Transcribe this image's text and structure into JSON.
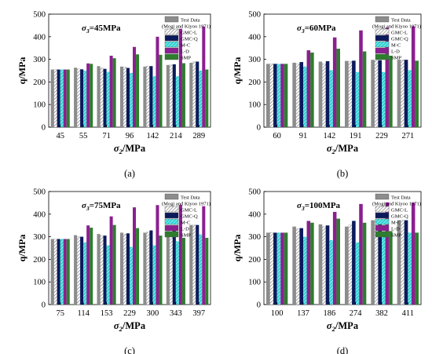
{
  "legend": {
    "items": [
      {
        "label": "Test Data",
        "sub": "(Mogi and Kiyoo 1971)",
        "fill": "#8c8c8c",
        "pattern": "none"
      },
      {
        "label": "GMC-L",
        "fill": "#ffffff",
        "pattern": "hatch-grey"
      },
      {
        "label": "GMC-Q",
        "fill": "#0b1a5c",
        "pattern": "none"
      },
      {
        "label": "M-C",
        "fill": "#2fd3d3",
        "pattern": "hatch-white"
      },
      {
        "label": "L-D",
        "fill": "#8b1f8f",
        "pattern": "none"
      },
      {
        "label": "SMP",
        "fill": "#2e7d2e",
        "pattern": "none"
      }
    ]
  },
  "chart_data": [
    {
      "type": "bar",
      "panel_label": "(a)",
      "subtitle": "σ3=45MPa",
      "xlabel": "σ2/MPa",
      "ylabel": "q/MPa",
      "ylim": [
        0,
        500
      ],
      "yticks": [
        0,
        100,
        200,
        300,
        400,
        500
      ],
      "categories": [
        "45",
        "55",
        "71",
        "96",
        "142",
        "214",
        "289"
      ],
      "series": [
        {
          "name": "Test Data",
          "values": [
            255,
            263,
            270,
            268,
            268,
            275,
            285
          ]
        },
        {
          "name": "GMC-L",
          "values": [
            255,
            258,
            262,
            266,
            270,
            275,
            289
          ]
        },
        {
          "name": "GMC-Q",
          "values": [
            255,
            256,
            258,
            262,
            270,
            278,
            290
          ]
        },
        {
          "name": "M-C",
          "values": [
            255,
            250,
            245,
            240,
            225,
            225,
            250
          ]
        },
        {
          "name": "L-D",
          "values": [
            255,
            282,
            316,
            355,
            400,
            435,
            445
          ]
        },
        {
          "name": "SMP",
          "values": [
            255,
            280,
            305,
            322,
            320,
            283,
            255
          ]
        }
      ]
    },
    {
      "type": "bar",
      "panel_label": "(b)",
      "subtitle": "σ3=60MPa",
      "xlabel": "σ2/MPa",
      "ylabel": "q/MPa",
      "ylim": [
        0,
        500
      ],
      "yticks": [
        0,
        100,
        200,
        300,
        400,
        500
      ],
      "categories": [
        "60",
        "91",
        "142",
        "191",
        "229",
        "271"
      ],
      "series": [
        {
          "name": "Test Data",
          "values": [
            280,
            285,
            290,
            293,
            298,
            298
          ]
        },
        {
          "name": "GMC-L",
          "values": [
            280,
            280,
            280,
            290,
            295,
            298
          ]
        },
        {
          "name": "GMC-Q",
          "values": [
            280,
            288,
            292,
            294,
            296,
            298
          ]
        },
        {
          "name": "M-C",
          "values": [
            280,
            268,
            252,
            244,
            244,
            252
          ]
        },
        {
          "name": "L-D",
          "values": [
            280,
            340,
            397,
            428,
            440,
            446
          ]
        },
        {
          "name": "SMP",
          "values": [
            280,
            330,
            347,
            335,
            316,
            294
          ]
        }
      ]
    },
    {
      "type": "bar",
      "panel_label": "(c)",
      "subtitle": "σ3=75MPa",
      "xlabel": "σ2/MPa",
      "ylabel": "q/MPa",
      "ylim": [
        0,
        500
      ],
      "yticks": [
        0,
        100,
        200,
        300,
        400,
        500
      ],
      "categories": [
        "75",
        "114",
        "153",
        "229",
        "300",
        "343",
        "397"
      ],
      "series": [
        {
          "name": "Test Data",
          "values": [
            290,
            307,
            312,
            318,
            318,
            325,
            352
          ]
        },
        {
          "name": "GMC-L",
          "values": [
            290,
            300,
            305,
            312,
            320,
            330,
            352
          ]
        },
        {
          "name": "GMC-Q",
          "values": [
            290,
            300,
            305,
            315,
            328,
            338,
            352
          ]
        },
        {
          "name": "M-C",
          "values": [
            290,
            275,
            262,
            255,
            262,
            280,
            310
          ]
        },
        {
          "name": "L-D",
          "values": [
            290,
            350,
            390,
            430,
            440,
            440,
            435
          ]
        },
        {
          "name": "SMP",
          "values": [
            290,
            340,
            352,
            338,
            305,
            295,
            295
          ]
        }
      ]
    },
    {
      "type": "bar",
      "panel_label": "(d)",
      "subtitle": "σ3=100MPa",
      "xlabel": "σ2/MPa",
      "ylabel": "q/MPa",
      "ylim": [
        0,
        500
      ],
      "yticks": [
        0,
        100,
        200,
        300,
        400,
        500
      ],
      "categories": [
        "100",
        "137",
        "186",
        "274",
        "382",
        "411"
      ],
      "series": [
        {
          "name": "Test Data",
          "values": [
            318,
            345,
            355,
            345,
            373,
            373
          ]
        },
        {
          "name": "GMC-L",
          "values": [
            318,
            335,
            345,
            352,
            372,
            373
          ]
        },
        {
          "name": "GMC-Q",
          "values": [
            318,
            338,
            350,
            370,
            373,
            373
          ]
        },
        {
          "name": "M-C",
          "values": [
            318,
            300,
            285,
            275,
            300,
            318
          ]
        },
        {
          "name": "L-D",
          "values": [
            318,
            370,
            410,
            445,
            452,
            450
          ]
        },
        {
          "name": "SMP",
          "values": [
            318,
            362,
            380,
            362,
            325,
            318
          ]
        }
      ]
    }
  ]
}
